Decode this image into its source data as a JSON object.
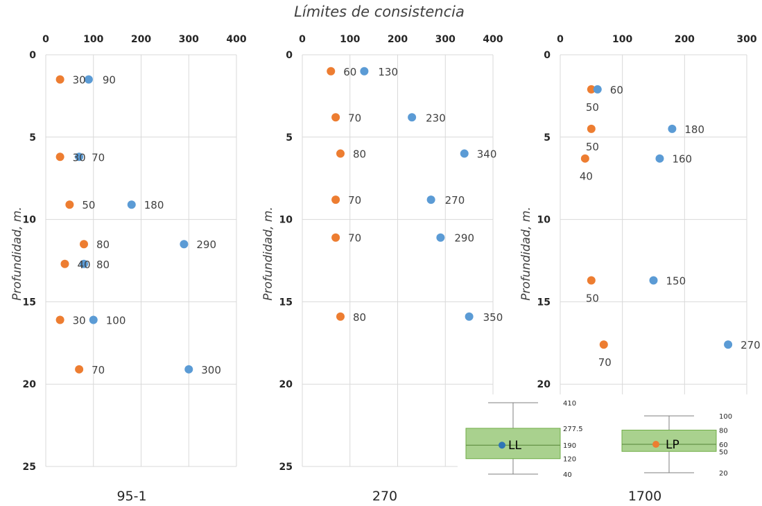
{
  "chart_data": {
    "type": "scatter",
    "title": "Límites de consistencia",
    "colors": {
      "LL": "#5b9bd5",
      "LP": "#ed7d31",
      "box_fill": "#a9d18e",
      "box_stroke": "#70ad47",
      "grid": "#d9d9d9"
    },
    "panels": [
      {
        "caption": "95-1",
        "ylabel": "Profundidad, m.",
        "xlim": [
          0,
          400
        ],
        "xticks": [
          "0",
          "100",
          "200",
          "300",
          "400"
        ],
        "ylim": [
          0,
          25
        ],
        "yticks": [
          "0",
          "5",
          "10",
          "15",
          "20",
          "25"
        ],
        "series": [
          {
            "name": "LP",
            "points": [
              {
                "x": 30,
                "y": 1.5,
                "label": "30"
              },
              {
                "x": 30,
                "y": 6.2,
                "label": "30"
              },
              {
                "x": 50,
                "y": 9.1,
                "label": "50"
              },
              {
                "x": 80,
                "y": 11.5,
                "label": "80"
              },
              {
                "x": 40,
                "y": 12.7,
                "label": "40"
              },
              {
                "x": 30,
                "y": 16.1,
                "label": "30"
              },
              {
                "x": 70,
                "y": 19.1,
                "label": "70"
              }
            ]
          },
          {
            "name": "LL",
            "points": [
              {
                "x": 90,
                "y": 1.5,
                "label": "90"
              },
              {
                "x": 70,
                "y": 6.2,
                "label": "70"
              },
              {
                "x": 180,
                "y": 9.1,
                "label": "180"
              },
              {
                "x": 290,
                "y": 11.5,
                "label": "290"
              },
              {
                "x": 80,
                "y": 12.7,
                "label": "80"
              },
              {
                "x": 100,
                "y": 16.1,
                "label": "100"
              },
              {
                "x": 300,
                "y": 19.1,
                "label": "300"
              }
            ]
          }
        ]
      },
      {
        "caption": "270",
        "ylabel": "Profundidad, m.",
        "xlim": [
          0,
          400
        ],
        "xticks": [
          "0",
          "100",
          "200",
          "300",
          "400"
        ],
        "ylim": [
          0,
          25
        ],
        "yticks": [
          "0",
          "5",
          "10",
          "15",
          "20",
          "25"
        ],
        "series": [
          {
            "name": "LP",
            "points": [
              {
                "x": 60,
                "y": 1.0,
                "label": "60"
              },
              {
                "x": 70,
                "y": 3.8,
                "label": "70"
              },
              {
                "x": 80,
                "y": 6.0,
                "label": "80"
              },
              {
                "x": 70,
                "y": 8.8,
                "label": "70"
              },
              {
                "x": 70,
                "y": 11.1,
                "label": "70"
              },
              {
                "x": 80,
                "y": 15.9,
                "label": "80"
              }
            ]
          },
          {
            "name": "LL",
            "points": [
              {
                "x": 130,
                "y": 1.0,
                "label": "130"
              },
              {
                "x": 230,
                "y": 3.8,
                "label": "230"
              },
              {
                "x": 340,
                "y": 6.0,
                "label": "340"
              },
              {
                "x": 270,
                "y": 8.8,
                "label": "270"
              },
              {
                "x": 290,
                "y": 11.1,
                "label": "290"
              },
              {
                "x": 350,
                "y": 15.9,
                "label": "350"
              }
            ]
          }
        ]
      },
      {
        "caption": "1700",
        "ylabel": "Profundidad, m.",
        "xlim": [
          0,
          300
        ],
        "xticks": [
          "0",
          "100",
          "200",
          "300"
        ],
        "ylim": [
          0,
          25
        ],
        "yticks": [
          "0",
          "5",
          "10",
          "15",
          "20"
        ],
        "series": [
          {
            "name": "LP",
            "points": [
              {
                "x": 50,
                "y": 2.1,
                "label": "50"
              },
              {
                "x": 50,
                "y": 4.5,
                "label": "50"
              },
              {
                "x": 40,
                "y": 6.3,
                "label": "40"
              },
              {
                "x": 50,
                "y": 13.7,
                "label": "50"
              },
              {
                "x": 70,
                "y": 17.6,
                "label": "70"
              }
            ]
          },
          {
            "name": "LL",
            "points": [
              {
                "x": 60,
                "y": 2.1,
                "label": "60"
              },
              {
                "x": 180,
                "y": 4.5,
                "label": "180"
              },
              {
                "x": 160,
                "y": 6.3,
                "label": "160"
              },
              {
                "x": 150,
                "y": 13.7,
                "label": "150"
              },
              {
                "x": 270,
                "y": 17.6,
                "label": "270"
              }
            ]
          }
        ]
      }
    ],
    "boxplots": [
      {
        "name": "LL",
        "min": 40,
        "q1": 120,
        "median": 190,
        "q3": 277.5,
        "max": 410,
        "mean": 190,
        "ticks": [
          "410",
          "277.5",
          "190",
          "120",
          "40"
        ]
      },
      {
        "name": "LP",
        "min": 20,
        "q1": 50,
        "median": 60,
        "q3": 80,
        "max": 100,
        "mean": 60,
        "ticks": [
          "100",
          "80",
          "60",
          "50",
          "20"
        ]
      }
    ]
  }
}
